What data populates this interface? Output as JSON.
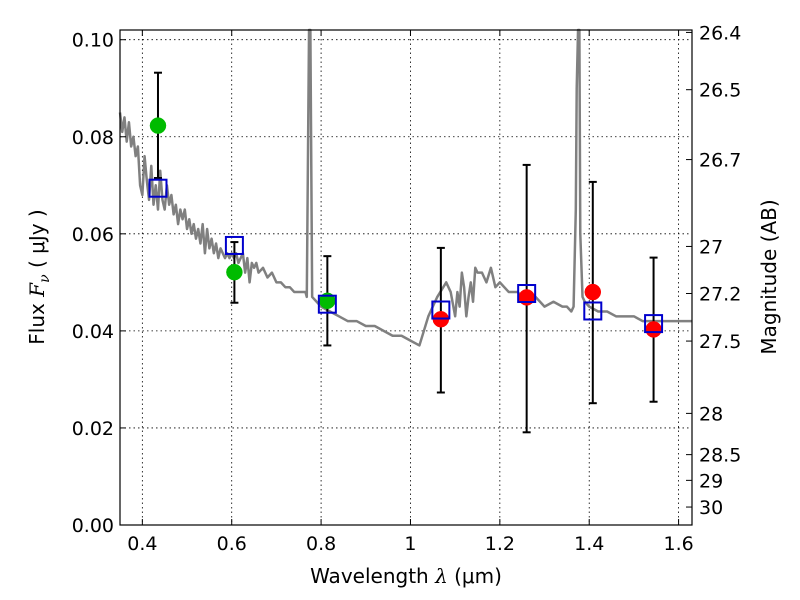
{
  "chart_data": {
    "type": "scatter",
    "title": "",
    "xlabel_prefix": "Wavelength ",
    "xlabel_symbol": "λ",
    "xlabel_suffix": " (μm)",
    "ylabel_prefix": "Flux ",
    "ylabel_symbol": "F",
    "ylabel_subscript": "ν",
    "ylabel_suffix": " ( μJy )",
    "y2label": "Magnitude (AB)",
    "xlim": [
      0.35,
      1.63
    ],
    "ylim": [
      0.0,
      0.102
    ],
    "grid": true,
    "x_ticks": [
      {
        "value": 0.4,
        "label": "0.4"
      },
      {
        "value": 0.6,
        "label": "0.6"
      },
      {
        "value": 0.8,
        "label": "0.8"
      },
      {
        "value": 1.0,
        "label": "1"
      },
      {
        "value": 1.2,
        "label": "1.2"
      },
      {
        "value": 1.4,
        "label": "1.4"
      },
      {
        "value": 1.6,
        "label": "1.6"
      }
    ],
    "y_ticks": [
      {
        "value": 0.0,
        "label": "0.00"
      },
      {
        "value": 0.02,
        "label": "0.02"
      },
      {
        "value": 0.04,
        "label": "0.04"
      },
      {
        "value": 0.06,
        "label": "0.06"
      },
      {
        "value": 0.08,
        "label": "0.08"
      },
      {
        "value": 0.1,
        "label": "0.10"
      }
    ],
    "y2_ticks": [
      {
        "flux": 0.1015,
        "label": "26.4"
      },
      {
        "flux": 0.0897,
        "label": "26.5"
      },
      {
        "flux": 0.0753,
        "label": "26.7"
      },
      {
        "flux": 0.0574,
        "label": "27"
      },
      {
        "flux": 0.0477,
        "label": "27.2"
      },
      {
        "flux": 0.0379,
        "label": "27.5"
      },
      {
        "flux": 0.023,
        "label": "28"
      },
      {
        "flux": 0.0145,
        "label": "28.5"
      },
      {
        "flux": 0.0092,
        "label": "29"
      },
      {
        "flux": 0.0037,
        "label": "30"
      }
    ],
    "colors": {
      "model": "#808080",
      "optical": "#00bb00",
      "nir": "#ff0000",
      "model_band": "#0000cc",
      "errorbar": "#000000"
    },
    "model_spectrum": {
      "x": [
        0.35,
        0.355,
        0.36,
        0.365,
        0.37,
        0.375,
        0.38,
        0.385,
        0.39,
        0.395,
        0.4,
        0.405,
        0.41,
        0.415,
        0.42,
        0.425,
        0.43,
        0.435,
        0.44,
        0.445,
        0.45,
        0.455,
        0.46,
        0.465,
        0.47,
        0.475,
        0.48,
        0.485,
        0.49,
        0.495,
        0.5,
        0.505,
        0.51,
        0.515,
        0.52,
        0.525,
        0.53,
        0.535,
        0.54,
        0.545,
        0.55,
        0.555,
        0.56,
        0.565,
        0.57,
        0.575,
        0.58,
        0.585,
        0.59,
        0.595,
        0.6,
        0.605,
        0.61,
        0.615,
        0.62,
        0.625,
        0.63,
        0.635,
        0.64,
        0.645,
        0.65,
        0.655,
        0.66,
        0.67,
        0.68,
        0.69,
        0.7,
        0.71,
        0.72,
        0.73,
        0.74,
        0.75,
        0.76,
        0.765,
        0.768,
        0.771,
        0.773,
        0.776,
        0.78,
        0.79,
        0.8,
        0.82,
        0.84,
        0.86,
        0.88,
        0.9,
        0.92,
        0.94,
        0.96,
        0.98,
        1.0,
        1.02,
        1.04,
        1.06,
        1.08,
        1.09,
        1.1,
        1.105,
        1.11,
        1.115,
        1.12,
        1.125,
        1.13,
        1.135,
        1.14,
        1.145,
        1.15,
        1.16,
        1.17,
        1.18,
        1.19,
        1.2,
        1.22,
        1.24,
        1.26,
        1.28,
        1.3,
        1.32,
        1.34,
        1.35,
        1.36,
        1.365,
        1.37,
        1.372,
        1.375,
        1.378,
        1.38,
        1.385,
        1.39,
        1.4,
        1.42,
        1.44,
        1.46,
        1.48,
        1.5,
        1.52,
        1.54,
        1.56,
        1.58,
        1.6,
        1.63
      ],
      "y": [
        0.085,
        0.081,
        0.084,
        0.079,
        0.083,
        0.078,
        0.08,
        0.076,
        0.078,
        0.07,
        0.068,
        0.076,
        0.071,
        0.067,
        0.074,
        0.066,
        0.07,
        0.065,
        0.073,
        0.067,
        0.065,
        0.07,
        0.066,
        0.068,
        0.064,
        0.066,
        0.062,
        0.065,
        0.063,
        0.065,
        0.061,
        0.063,
        0.06,
        0.062,
        0.059,
        0.061,
        0.058,
        0.062,
        0.056,
        0.061,
        0.057,
        0.059,
        0.056,
        0.058,
        0.055,
        0.057,
        0.056,
        0.055,
        0.056,
        0.055,
        0.056,
        0.055,
        0.056,
        0.054,
        0.055,
        0.056,
        0.052,
        0.055,
        0.05,
        0.054,
        0.053,
        0.054,
        0.052,
        0.053,
        0.051,
        0.052,
        0.05,
        0.05,
        0.049,
        0.049,
        0.048,
        0.048,
        0.048,
        0.048,
        0.047,
        0.08,
        0.102,
        0.102,
        0.047,
        0.046,
        0.045,
        0.044,
        0.043,
        0.042,
        0.042,
        0.041,
        0.041,
        0.04,
        0.039,
        0.039,
        0.038,
        0.037,
        0.043,
        0.047,
        0.05,
        0.048,
        0.043,
        0.048,
        0.045,
        0.052,
        0.049,
        0.043,
        0.047,
        0.05,
        0.046,
        0.053,
        0.052,
        0.052,
        0.05,
        0.053,
        0.049,
        0.05,
        0.048,
        0.048,
        0.046,
        0.047,
        0.045,
        0.046,
        0.045,
        0.045,
        0.044,
        0.045,
        0.065,
        0.09,
        0.102,
        0.102,
        0.06,
        0.047,
        0.046,
        0.045,
        0.044,
        0.044,
        0.043,
        0.043,
        0.043,
        0.042,
        0.042,
        0.042,
        0.042,
        0.042,
        0.042
      ]
    },
    "series": [
      {
        "role": "optical",
        "x": [
          0.435,
          0.606,
          0.814
        ],
        "y": [
          0.0823,
          0.0521,
          0.0462
        ],
        "yerr_low": [
          0.0715,
          0.0458,
          0.037
        ],
        "yerr_high": [
          0.0932,
          0.0583,
          0.0554
        ]
      },
      {
        "role": "nir",
        "x": [
          1.068,
          1.26,
          1.408,
          1.544
        ],
        "y": [
          0.0424,
          0.0469,
          0.048,
          0.0403
        ],
        "yerr_low": [
          0.0273,
          0.0191,
          0.0251,
          0.0254
        ],
        "yerr_high": [
          0.0571,
          0.0742,
          0.0707,
          0.0551
        ]
      },
      {
        "role": "model_band",
        "x": [
          0.435,
          0.606,
          0.814,
          1.068,
          1.26,
          1.408,
          1.544
        ],
        "y": [
          0.0694,
          0.0576,
          0.0455,
          0.0443,
          0.0477,
          0.0441,
          0.0415
        ]
      }
    ]
  }
}
